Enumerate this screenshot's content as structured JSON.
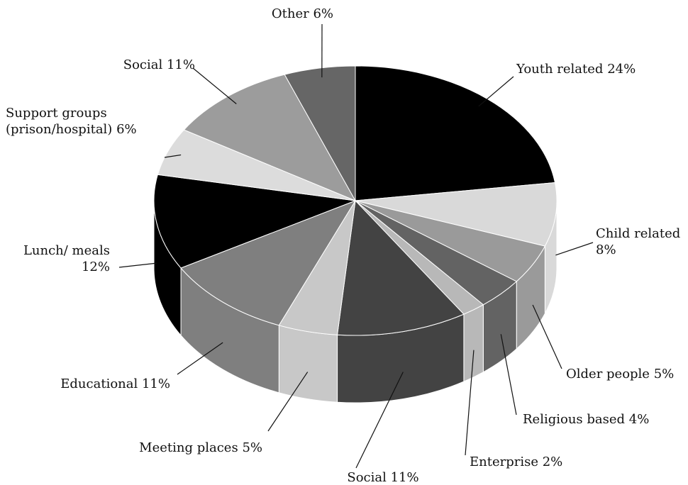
{
  "chart_data": {
    "type": "pie3d",
    "categories": [
      "Youth related",
      "Child related",
      "Older people",
      "Religious based",
      "Enterprise",
      "Social",
      "Meeting places",
      "Educational",
      "Lunch/ meals",
      "Support groups (prison/hospital)",
      "Social",
      "Other"
    ],
    "values": [
      24,
      8,
      5,
      4,
      2,
      11,
      5,
      11,
      12,
      6,
      11,
      6
    ],
    "value_labels": [
      "24%",
      "8%",
      "5%",
      "4%",
      "2%",
      "11%",
      "5%",
      "11%",
      "12%",
      "6%",
      "11%",
      "6%"
    ],
    "colors": [
      "#000000",
      "#d9d9d9",
      "#9a9a9a",
      "#636363",
      "#b8b8b8",
      "#434343",
      "#c8c8c8",
      "#7f7f7f",
      "#000000",
      "#dcdcdc",
      "#9c9c9c",
      "#666666"
    ]
  }
}
